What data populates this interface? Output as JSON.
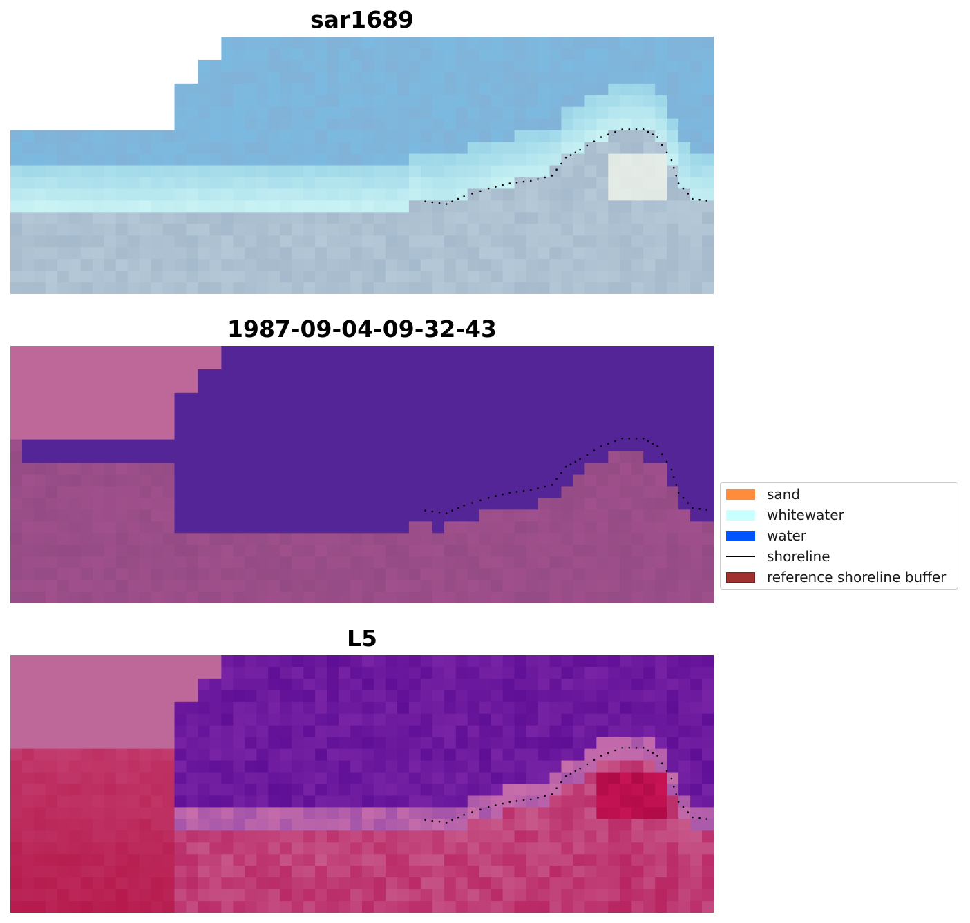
{
  "panels": [
    {
      "id": "rgb",
      "title": "sar1689"
    },
    {
      "id": "classification",
      "title": "1987-09-04-09-32-43"
    },
    {
      "id": "index",
      "title": "L5"
    }
  ],
  "legend": {
    "items": [
      {
        "label": "sand",
        "color": "#ff8c3a",
        "kind": "patch"
      },
      {
        "label": "whitewater",
        "color": "#c8ffff",
        "kind": "patch"
      },
      {
        "label": "water",
        "color": "#0055ff",
        "kind": "patch"
      },
      {
        "label": "shoreline",
        "color": "#000000",
        "kind": "line"
      },
      {
        "label": "reference shoreline buffer",
        "color": "#a0302e",
        "kind": "patch",
        "edge": "#7a1f1e"
      }
    ]
  },
  "colors": {
    "nodata_pink": "#bd6898",
    "water_purple": "#542596",
    "shoreline_dots": "#000000"
  }
}
